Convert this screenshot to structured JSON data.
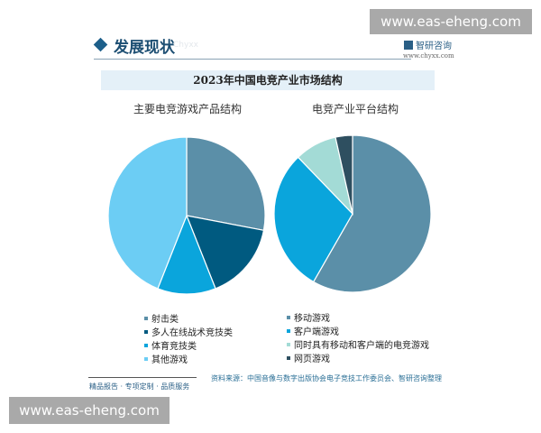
{
  "watermark": "www.eas-eheng.com",
  "header": {
    "section": "发展现状",
    "section_en": "Chyxx",
    "logo": "智研咨询",
    "site": "www.chyxx.com"
  },
  "footer": {
    "tagline": "精品报告 · 专项定制 · 品质服务",
    "source": "资料来源：中国音像与数字出版协会电子竞技工作委员会、智研咨询整理"
  },
  "chart_data": [
    {
      "type": "pie",
      "banner_title": "2023年中国电竞产业市场结构",
      "title": "主要电竞游戏产品结构",
      "categories": [
        "射击类",
        "多人在线战术竞技类",
        "体育竞技类",
        "其他游戏"
      ],
      "values": [
        28,
        16,
        12,
        44
      ],
      "colors": [
        "#5b8fa8",
        "#005a80",
        "#0aa5dc",
        "#6ccdf4"
      ],
      "legend": "bottom"
    },
    {
      "type": "pie",
      "title": "电竞产业平台结构",
      "categories": [
        "移动游戏",
        "客户端游戏",
        "同时具有移动和客户端的电竞游戏",
        "网页游戏"
      ],
      "values": [
        58.3,
        29.5,
        8.7,
        3.5
      ],
      "colors": [
        "#5b8fa8",
        "#0aa5dc",
        "#a3dbd6",
        "#2e4f60"
      ],
      "legend": "bottom"
    }
  ]
}
